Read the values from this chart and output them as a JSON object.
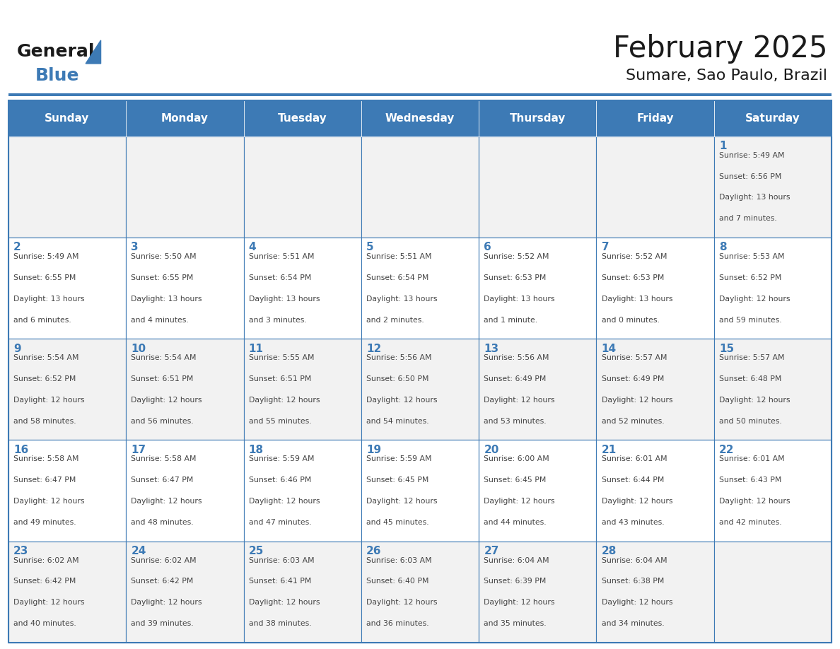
{
  "title": "February 2025",
  "subtitle": "Sumare, Sao Paulo, Brazil",
  "days_of_week": [
    "Sunday",
    "Monday",
    "Tuesday",
    "Wednesday",
    "Thursday",
    "Friday",
    "Saturday"
  ],
  "header_bg_color": "#3d7ab5",
  "header_text_color": "#ffffff",
  "cell_bg_color_odd": "#f2f2f2",
  "cell_bg_color_even": "#ffffff",
  "cell_border_color": "#3d7ab5",
  "day_number_color": "#3d7ab5",
  "info_text_color": "#444444",
  "title_color": "#1a1a1a",
  "subtitle_color": "#1a1a1a",
  "logo_text_general": "General",
  "logo_text_blue": "Blue",
  "logo_triangle_color": "#3d7ab5",
  "calendar_data": {
    "1": {
      "sunrise": "5:49 AM",
      "sunset": "6:56 PM",
      "daylight_hours": 13,
      "daylight_minutes": 7
    },
    "2": {
      "sunrise": "5:49 AM",
      "sunset": "6:55 PM",
      "daylight_hours": 13,
      "daylight_minutes": 6
    },
    "3": {
      "sunrise": "5:50 AM",
      "sunset": "6:55 PM",
      "daylight_hours": 13,
      "daylight_minutes": 4
    },
    "4": {
      "sunrise": "5:51 AM",
      "sunset": "6:54 PM",
      "daylight_hours": 13,
      "daylight_minutes": 3
    },
    "5": {
      "sunrise": "5:51 AM",
      "sunset": "6:54 PM",
      "daylight_hours": 13,
      "daylight_minutes": 2
    },
    "6": {
      "sunrise": "5:52 AM",
      "sunset": "6:53 PM",
      "daylight_hours": 13,
      "daylight_minutes": 1
    },
    "7": {
      "sunrise": "5:52 AM",
      "sunset": "6:53 PM",
      "daylight_hours": 13,
      "daylight_minutes": 0
    },
    "8": {
      "sunrise": "5:53 AM",
      "sunset": "6:52 PM",
      "daylight_hours": 12,
      "daylight_minutes": 59
    },
    "9": {
      "sunrise": "5:54 AM",
      "sunset": "6:52 PM",
      "daylight_hours": 12,
      "daylight_minutes": 58
    },
    "10": {
      "sunrise": "5:54 AM",
      "sunset": "6:51 PM",
      "daylight_hours": 12,
      "daylight_minutes": 56
    },
    "11": {
      "sunrise": "5:55 AM",
      "sunset": "6:51 PM",
      "daylight_hours": 12,
      "daylight_minutes": 55
    },
    "12": {
      "sunrise": "5:56 AM",
      "sunset": "6:50 PM",
      "daylight_hours": 12,
      "daylight_minutes": 54
    },
    "13": {
      "sunrise": "5:56 AM",
      "sunset": "6:49 PM",
      "daylight_hours": 12,
      "daylight_minutes": 53
    },
    "14": {
      "sunrise": "5:57 AM",
      "sunset": "6:49 PM",
      "daylight_hours": 12,
      "daylight_minutes": 52
    },
    "15": {
      "sunrise": "5:57 AM",
      "sunset": "6:48 PM",
      "daylight_hours": 12,
      "daylight_minutes": 50
    },
    "16": {
      "sunrise": "5:58 AM",
      "sunset": "6:47 PM",
      "daylight_hours": 12,
      "daylight_minutes": 49
    },
    "17": {
      "sunrise": "5:58 AM",
      "sunset": "6:47 PM",
      "daylight_hours": 12,
      "daylight_minutes": 48
    },
    "18": {
      "sunrise": "5:59 AM",
      "sunset": "6:46 PM",
      "daylight_hours": 12,
      "daylight_minutes": 47
    },
    "19": {
      "sunrise": "5:59 AM",
      "sunset": "6:45 PM",
      "daylight_hours": 12,
      "daylight_minutes": 45
    },
    "20": {
      "sunrise": "6:00 AM",
      "sunset": "6:45 PM",
      "daylight_hours": 12,
      "daylight_minutes": 44
    },
    "21": {
      "sunrise": "6:01 AM",
      "sunset": "6:44 PM",
      "daylight_hours": 12,
      "daylight_minutes": 43
    },
    "22": {
      "sunrise": "6:01 AM",
      "sunset": "6:43 PM",
      "daylight_hours": 12,
      "daylight_minutes": 42
    },
    "23": {
      "sunrise": "6:02 AM",
      "sunset": "6:42 PM",
      "daylight_hours": 12,
      "daylight_minutes": 40
    },
    "24": {
      "sunrise": "6:02 AM",
      "sunset": "6:42 PM",
      "daylight_hours": 12,
      "daylight_minutes": 39
    },
    "25": {
      "sunrise": "6:03 AM",
      "sunset": "6:41 PM",
      "daylight_hours": 12,
      "daylight_minutes": 38
    },
    "26": {
      "sunrise": "6:03 AM",
      "sunset": "6:40 PM",
      "daylight_hours": 12,
      "daylight_minutes": 36
    },
    "27": {
      "sunrise": "6:04 AM",
      "sunset": "6:39 PM",
      "daylight_hours": 12,
      "daylight_minutes": 35
    },
    "28": {
      "sunrise": "6:04 AM",
      "sunset": "6:38 PM",
      "daylight_hours": 12,
      "daylight_minutes": 34
    }
  },
  "week_layout": [
    [
      null,
      null,
      null,
      null,
      null,
      null,
      "1"
    ],
    [
      "2",
      "3",
      "4",
      "5",
      "6",
      "7",
      "8"
    ],
    [
      "9",
      "10",
      "11",
      "12",
      "13",
      "14",
      "15"
    ],
    [
      "16",
      "17",
      "18",
      "19",
      "20",
      "21",
      "22"
    ],
    [
      "23",
      "24",
      "25",
      "26",
      "27",
      "28",
      null
    ]
  ]
}
